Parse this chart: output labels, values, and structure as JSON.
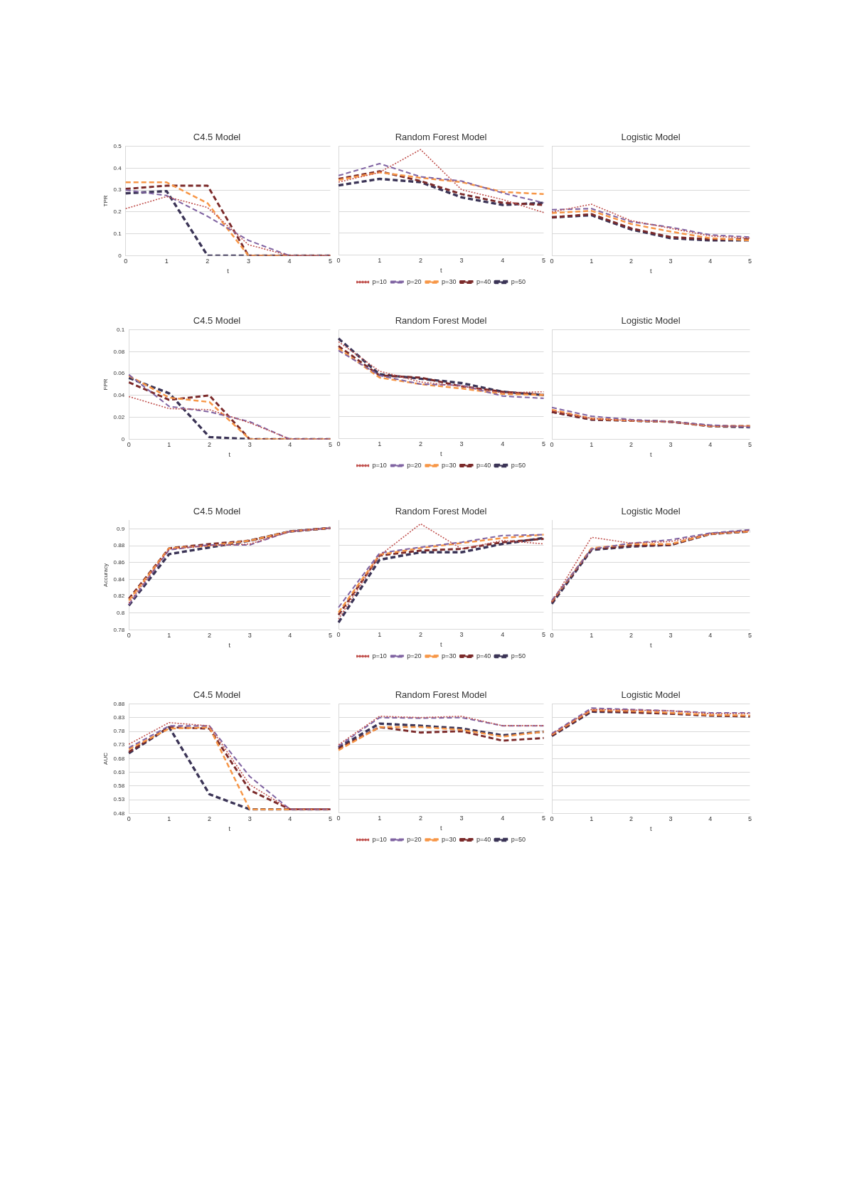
{
  "chart_data": [
    {
      "type": "line",
      "title": "C4.5 Model",
      "xlabel": "t",
      "ylabel": "TPR",
      "categories": [
        "0",
        "1",
        "2",
        "3",
        "4",
        "5"
      ],
      "ylim": [
        0,
        0.5
      ],
      "yticks": [
        0,
        0.1,
        0.2,
        0.3,
        0.4,
        0.5
      ],
      "grid": "y",
      "series": [
        {
          "color": "#c0504d",
          "line_style": "dotted",
          "values": [
            0.215,
            0.27,
            0.22,
            0.05,
            0,
            0
          ]
        },
        {
          "color": "#8064a2",
          "line_style": "dashed",
          "values": [
            0.3,
            0.275,
            0.18,
            0.07,
            0,
            0
          ]
        },
        {
          "color": "#f79646",
          "line_style": "dashed",
          "values": [
            0.335,
            0.335,
            0.24,
            0,
            0,
            0
          ]
        },
        {
          "color": "#7b2a2a",
          "line_style": "dashed",
          "values": [
            0.305,
            0.32,
            0.32,
            0,
            0,
            0
          ]
        },
        {
          "color": "#3b3456",
          "line_style": "dashed",
          "values": [
            0.285,
            0.295,
            0,
            0,
            0,
            0
          ]
        }
      ]
    },
    {
      "type": "line",
      "title": "Random Forest Model",
      "xlabel": "t",
      "categories": [
        "0",
        "1",
        "2",
        "3",
        "4",
        "5"
      ],
      "ylim": [
        0,
        0.5
      ],
      "yticks": [
        0,
        0.1,
        0.2,
        0.3,
        0.4,
        0.5
      ],
      "grid": "y",
      "tick_labels": "x",
      "legend": "bottom",
      "series": [
        {
          "name": "p=10",
          "color": "#c0504d",
          "line_style": "dotted",
          "values": [
            0.335,
            0.38,
            0.485,
            0.3,
            0.255,
            0.195
          ]
        },
        {
          "name": "p=20",
          "color": "#8064a2",
          "line_style": "dashed",
          "values": [
            0.365,
            0.42,
            0.36,
            0.34,
            0.285,
            0.24
          ]
        },
        {
          "name": "p=30",
          "color": "#f79646",
          "line_style": "dashed",
          "values": [
            0.345,
            0.38,
            0.355,
            0.335,
            0.29,
            0.28
          ]
        },
        {
          "name": "p=40",
          "color": "#7b2a2a",
          "line_style": "dashed",
          "values": [
            0.35,
            0.385,
            0.34,
            0.28,
            0.24,
            0.23
          ]
        },
        {
          "name": "p=50",
          "color": "#3b3456",
          "line_style": "dashed",
          "values": [
            0.32,
            0.35,
            0.335,
            0.265,
            0.23,
            0.24
          ]
        }
      ]
    },
    {
      "type": "line",
      "title": "Logistic Model",
      "xlabel": "t",
      "categories": [
        "0",
        "1",
        "2",
        "3",
        "4",
        "5"
      ],
      "ylim": [
        0,
        0.5
      ],
      "yticks": [
        0,
        0.1,
        0.2,
        0.3,
        0.4,
        0.5
      ],
      "grid": "y",
      "tick_labels": "x",
      "series": [
        {
          "color": "#c0504d",
          "line_style": "dotted",
          "values": [
            0.2,
            0.235,
            0.16,
            0.125,
            0.09,
            0.08
          ]
        },
        {
          "color": "#8064a2",
          "line_style": "dashed",
          "values": [
            0.21,
            0.215,
            0.155,
            0.13,
            0.095,
            0.085
          ]
        },
        {
          "color": "#f79646",
          "line_style": "dashed",
          "values": [
            0.195,
            0.205,
            0.145,
            0.11,
            0.08,
            0.07
          ]
        },
        {
          "color": "#7b2a2a",
          "line_style": "dashed",
          "values": [
            0.175,
            0.19,
            0.125,
            0.085,
            0.075,
            0.075
          ]
        },
        {
          "color": "#3b3456",
          "line_style": "dashed",
          "values": [
            0.175,
            0.185,
            0.12,
            0.08,
            0.07,
            0.07
          ]
        }
      ]
    },
    {
      "type": "line",
      "title": "C4.5 Model",
      "xlabel": "t",
      "ylabel": "FPR",
      "categories": [
        "0",
        "1",
        "2",
        "3",
        "4",
        "5"
      ],
      "ylim": [
        0,
        0.1
      ],
      "yticks": [
        0,
        0.02,
        0.04,
        0.06,
        0.08,
        0.1
      ],
      "grid": "y",
      "series": [
        {
          "color": "#c0504d",
          "line_style": "dotted",
          "values": [
            0.039,
            0.028,
            0.027,
            0.015,
            0,
            0
          ]
        },
        {
          "color": "#8064a2",
          "line_style": "dashed",
          "values": [
            0.059,
            0.03,
            0.025,
            0.016,
            0,
            0
          ]
        },
        {
          "color": "#f79646",
          "line_style": "dashed",
          "values": [
            0.058,
            0.038,
            0.034,
            0,
            0,
            0
          ]
        },
        {
          "color": "#7b2a2a",
          "line_style": "dashed",
          "values": [
            0.052,
            0.036,
            0.04,
            0,
            0,
            0
          ]
        },
        {
          "color": "#3b3456",
          "line_style": "dashed",
          "values": [
            0.056,
            0.042,
            0.002,
            0,
            0,
            0
          ]
        }
      ]
    },
    {
      "type": "line",
      "title": "Random Forest Model",
      "xlabel": "t",
      "categories": [
        "0",
        "1",
        "2",
        "3",
        "4",
        "5"
      ],
      "ylim": [
        0,
        0.1
      ],
      "yticks": [
        0,
        0.02,
        0.04,
        0.06,
        0.08,
        0.1
      ],
      "grid": "y",
      "tick_labels": "x",
      "legend": "bottom",
      "series": [
        {
          "name": "p=10",
          "color": "#c0504d",
          "line_style": "dotted",
          "values": [
            0.089,
            0.062,
            0.052,
            0.048,
            0.042,
            0.043
          ]
        },
        {
          "name": "p=20",
          "color": "#8064a2",
          "line_style": "dashed",
          "values": [
            0.081,
            0.058,
            0.05,
            0.049,
            0.039,
            0.037
          ]
        },
        {
          "name": "p=30",
          "color": "#f79646",
          "line_style": "dashed",
          "values": [
            0.083,
            0.056,
            0.05,
            0.046,
            0.041,
            0.04
          ]
        },
        {
          "name": "p=40",
          "color": "#7b2a2a",
          "line_style": "dashed",
          "values": [
            0.085,
            0.058,
            0.056,
            0.048,
            0.043,
            0.04
          ]
        },
        {
          "name": "p=50",
          "color": "#3b3456",
          "line_style": "dashed",
          "values": [
            0.092,
            0.059,
            0.055,
            0.051,
            0.043,
            0.04
          ]
        }
      ]
    },
    {
      "type": "line",
      "title": "Logistic Model",
      "xlabel": "t",
      "categories": [
        "0",
        "1",
        "2",
        "3",
        "4",
        "5"
      ],
      "ylim": [
        0,
        0.1
      ],
      "yticks": [
        0,
        0.02,
        0.04,
        0.06,
        0.08,
        0.1
      ],
      "grid": "y",
      "tick_labels": "x",
      "series": [
        {
          "color": "#c0504d",
          "line_style": "dotted",
          "values": [
            0.026,
            0.019,
            0.017,
            0.016,
            0.012,
            0.012
          ]
        },
        {
          "color": "#8064a2",
          "line_style": "dashed",
          "values": [
            0.029,
            0.021,
            0.018,
            0.016,
            0.013,
            0.011
          ]
        },
        {
          "color": "#f79646",
          "line_style": "dashed",
          "values": [
            0.027,
            0.019,
            0.017,
            0.016,
            0.012,
            0.012
          ]
        },
        {
          "color": "#7b2a2a",
          "line_style": "dashed",
          "values": [
            0.025,
            0.018,
            0.017,
            0.016,
            0.012,
            0.012
          ]
        },
        {
          "color": "#3b3456",
          "line_style": "dashed",
          "values": [
            0.025,
            0.018,
            0.017,
            0.016,
            0.012,
            0.011
          ]
        }
      ]
    },
    {
      "type": "line",
      "title": "C4.5 Model",
      "xlabel": "t",
      "ylabel": "Accuracy",
      "categories": [
        "0",
        "1",
        "2",
        "3",
        "4",
        "5"
      ],
      "ylim": [
        0.78,
        0.91
      ],
      "yticks": [
        0.78,
        0.8,
        0.82,
        0.84,
        0.86,
        0.88,
        0.9
      ],
      "grid": "y",
      "series": [
        {
          "color": "#c0504d",
          "line_style": "dotted",
          "values": [
            0.812,
            0.876,
            0.88,
            0.882,
            0.897,
            0.901
          ]
        },
        {
          "color": "#8064a2",
          "line_style": "dashed",
          "values": [
            0.81,
            0.875,
            0.881,
            0.881,
            0.897,
            0.901
          ]
        },
        {
          "color": "#f79646",
          "line_style": "dashed",
          "values": [
            0.815,
            0.877,
            0.88,
            0.886,
            0.897,
            0.901
          ]
        },
        {
          "color": "#7b2a2a",
          "line_style": "dashed",
          "values": [
            0.817,
            0.877,
            0.882,
            0.886,
            0.897,
            0.901
          ]
        },
        {
          "color": "#3b3456",
          "line_style": "dashed",
          "values": [
            0.809,
            0.87,
            0.878,
            0.886,
            0.897,
            0.901
          ]
        }
      ]
    },
    {
      "type": "line",
      "title": "Random Forest Model",
      "xlabel": "t",
      "categories": [
        "0",
        "1",
        "2",
        "3",
        "4",
        "5"
      ],
      "ylim": [
        0.78,
        0.91
      ],
      "yticks": [
        0.78,
        0.8,
        0.82,
        0.84,
        0.86,
        0.88,
        0.9
      ],
      "grid": "y",
      "tick_labels": "x",
      "legend": "bottom",
      "series": [
        {
          "name": "p=10",
          "color": "#c0504d",
          "line_style": "dotted",
          "values": [
            0.792,
            0.868,
            0.906,
            0.876,
            0.886,
            0.882
          ]
        },
        {
          "name": "p=20",
          "color": "#8064a2",
          "line_style": "dashed",
          "values": [
            0.806,
            0.871,
            0.878,
            0.884,
            0.892,
            0.893
          ]
        },
        {
          "name": "p=30",
          "color": "#f79646",
          "line_style": "dashed",
          "values": [
            0.8,
            0.869,
            0.877,
            0.883,
            0.889,
            0.893
          ]
        },
        {
          "name": "p=40",
          "color": "#7b2a2a",
          "line_style": "dashed",
          "values": [
            0.797,
            0.868,
            0.874,
            0.876,
            0.884,
            0.888
          ]
        },
        {
          "name": "p=50",
          "color": "#3b3456",
          "line_style": "dashed",
          "values": [
            0.788,
            0.863,
            0.872,
            0.872,
            0.882,
            0.889
          ]
        }
      ]
    },
    {
      "type": "line",
      "title": "Logistic Model",
      "xlabel": "t",
      "categories": [
        "0",
        "1",
        "2",
        "3",
        "4",
        "5"
      ],
      "ylim": [
        0.78,
        0.91
      ],
      "yticks": [
        0.78,
        0.8,
        0.82,
        0.84,
        0.86,
        0.88,
        0.9
      ],
      "grid": "y",
      "tick_labels": "x",
      "series": [
        {
          "color": "#c0504d",
          "line_style": "dotted",
          "values": [
            0.813,
            0.89,
            0.883,
            0.885,
            0.894,
            0.898
          ]
        },
        {
          "color": "#8064a2",
          "line_style": "dashed",
          "values": [
            0.815,
            0.876,
            0.883,
            0.887,
            0.895,
            0.899
          ]
        },
        {
          "color": "#f79646",
          "line_style": "dashed",
          "values": [
            0.814,
            0.877,
            0.882,
            0.882,
            0.894,
            0.897
          ]
        },
        {
          "color": "#7b2a2a",
          "line_style": "dashed",
          "values": [
            0.813,
            0.876,
            0.88,
            0.881,
            0.894,
            0.897
          ]
        },
        {
          "color": "#3b3456",
          "line_style": "dashed",
          "values": [
            0.811,
            0.875,
            0.879,
            0.881,
            0.894,
            0.897
          ]
        }
      ]
    },
    {
      "type": "line",
      "title": "C4.5 Model",
      "xlabel": "t",
      "ylabel": "AUC",
      "categories": [
        "0",
        "1",
        "2",
        "3",
        "4",
        "5"
      ],
      "ylim": [
        0.48,
        0.88
      ],
      "yticks": [
        0.48,
        0.53,
        0.58,
        0.63,
        0.68,
        0.73,
        0.78,
        0.83,
        0.88
      ],
      "grid": "y",
      "series": [
        {
          "color": "#c0504d",
          "line_style": "dotted",
          "values": [
            0.733,
            0.812,
            0.8,
            0.585,
            0.495,
            0.495
          ]
        },
        {
          "color": "#8064a2",
          "line_style": "dashed",
          "values": [
            0.72,
            0.8,
            0.8,
            0.615,
            0.495,
            0.495
          ]
        },
        {
          "color": "#f79646",
          "line_style": "dashed",
          "values": [
            0.715,
            0.79,
            0.795,
            0.495,
            0.495,
            0.495
          ]
        },
        {
          "color": "#7b2a2a",
          "line_style": "dashed",
          "values": [
            0.705,
            0.795,
            0.79,
            0.565,
            0.495,
            0.495
          ]
        },
        {
          "color": "#3b3456",
          "line_style": "dashed",
          "values": [
            0.7,
            0.795,
            0.55,
            0.495,
            0.495,
            0.495
          ]
        }
      ]
    },
    {
      "type": "line",
      "title": "Random Forest Model",
      "xlabel": "t",
      "categories": [
        "0",
        "1",
        "2",
        "3",
        "4",
        "5"
      ],
      "ylim": [
        0.48,
        0.88
      ],
      "yticks": [
        0.48,
        0.53,
        0.58,
        0.63,
        0.68,
        0.73,
        0.78,
        0.83,
        0.88
      ],
      "grid": "y",
      "tick_labels": "x",
      "legend": "bottom",
      "series": [
        {
          "name": "p=10",
          "color": "#c0504d",
          "line_style": "dotted",
          "values": [
            0.73,
            0.835,
            0.83,
            0.835,
            0.8,
            0.8
          ]
        },
        {
          "name": "p=20",
          "color": "#8064a2",
          "line_style": "dashed",
          "values": [
            0.725,
            0.83,
            0.828,
            0.83,
            0.8,
            0.8
          ]
        },
        {
          "name": "p=30",
          "color": "#f79646",
          "line_style": "dashed",
          "values": [
            0.71,
            0.795,
            0.795,
            0.785,
            0.76,
            0.778
          ]
        },
        {
          "name": "p=40",
          "color": "#7b2a2a",
          "line_style": "dashed",
          "values": [
            0.715,
            0.795,
            0.775,
            0.78,
            0.745,
            0.755
          ]
        },
        {
          "name": "p=50",
          "color": "#3b3456",
          "line_style": "dashed",
          "values": [
            0.72,
            0.808,
            0.8,
            0.79,
            0.765,
            0.778
          ]
        }
      ]
    },
    {
      "type": "line",
      "title": "Logistic Model",
      "xlabel": "t",
      "categories": [
        "0",
        "1",
        "2",
        "3",
        "4",
        "5"
      ],
      "ylim": [
        0.48,
        0.88
      ],
      "yticks": [
        0.48,
        0.53,
        0.58,
        0.63,
        0.68,
        0.73,
        0.78,
        0.83,
        0.88
      ],
      "grid": "y",
      "tick_labels": "x",
      "series": [
        {
          "color": "#c0504d",
          "line_style": "dotted",
          "values": [
            0.77,
            0.86,
            0.858,
            0.855,
            0.845,
            0.845
          ]
        },
        {
          "color": "#8064a2",
          "line_style": "dashed",
          "values": [
            0.772,
            0.865,
            0.86,
            0.855,
            0.848,
            0.848
          ]
        },
        {
          "color": "#f79646",
          "line_style": "dashed",
          "values": [
            0.768,
            0.858,
            0.855,
            0.848,
            0.84,
            0.838
          ]
        },
        {
          "color": "#7b2a2a",
          "line_style": "dashed",
          "values": [
            0.765,
            0.855,
            0.85,
            0.845,
            0.838,
            0.835
          ]
        },
        {
          "color": "#3b3456",
          "line_style": "dashed",
          "values": [
            0.763,
            0.852,
            0.85,
            0.845,
            0.838,
            0.835
          ]
        }
      ]
    }
  ]
}
